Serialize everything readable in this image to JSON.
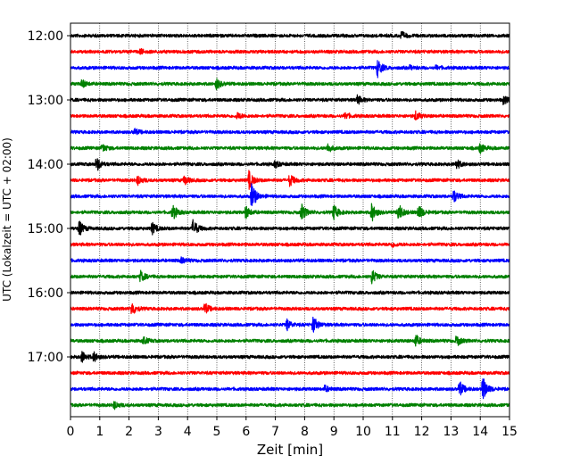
{
  "chart_data": {
    "type": "line",
    "subtype": "helicorder",
    "title": "",
    "xlabel": "Zeit  [min]",
    "ylabel": "UTC (Lokalzeit = UTC + 02:00)",
    "xlim": [
      0,
      15
    ],
    "xticks": [
      0,
      1,
      2,
      3,
      4,
      5,
      6,
      7,
      8,
      9,
      10,
      11,
      12,
      13,
      14,
      15
    ],
    "ytick_labels": [
      "12:00",
      "13:00",
      "14:00",
      "15:00",
      "16:00",
      "17:00"
    ],
    "ytick_rows": [
      0,
      4,
      8,
      12,
      16,
      20
    ],
    "grid": "vertical dotted",
    "trace_colors": [
      "#000000",
      "#ff0000",
      "#0000ff",
      "#008000"
    ],
    "rows": [
      {
        "start": "12:00",
        "events": [
          {
            "t": 11.3,
            "amp": 0.25
          }
        ]
      },
      {
        "start": "12:15",
        "events": [
          {
            "t": 2.4,
            "amp": 0.15
          }
        ]
      },
      {
        "start": "12:30",
        "events": [
          {
            "t": 10.5,
            "amp": 0.6
          },
          {
            "t": 11.6,
            "amp": 0.12
          },
          {
            "t": 12.5,
            "amp": 0.12
          }
        ]
      },
      {
        "start": "12:45",
        "events": [
          {
            "t": 0.4,
            "amp": 0.25
          },
          {
            "t": 5.0,
            "amp": 0.35
          }
        ]
      },
      {
        "start": "13:00",
        "events": [
          {
            "t": 9.8,
            "amp": 0.3
          },
          {
            "t": 14.8,
            "amp": 0.25
          }
        ]
      },
      {
        "start": "13:15",
        "events": [
          {
            "t": 5.7,
            "amp": 0.22
          },
          {
            "t": 9.4,
            "amp": 0.2
          },
          {
            "t": 11.8,
            "amp": 0.28
          }
        ]
      },
      {
        "start": "13:30",
        "events": [
          {
            "t": 2.2,
            "amp": 0.18
          }
        ]
      },
      {
        "start": "13:45",
        "events": [
          {
            "t": 1.1,
            "amp": 0.25
          },
          {
            "t": 8.8,
            "amp": 0.28
          },
          {
            "t": 14.0,
            "amp": 0.3
          }
        ]
      },
      {
        "start": "14:00",
        "events": [
          {
            "t": 0.9,
            "amp": 0.45
          },
          {
            "t": 7.0,
            "amp": 0.2
          },
          {
            "t": 13.2,
            "amp": 0.3
          }
        ]
      },
      {
        "start": "14:15",
        "events": [
          {
            "t": 6.1,
            "amp": 0.6
          },
          {
            "t": 7.5,
            "amp": 0.4
          },
          {
            "t": 2.3,
            "amp": 0.3
          },
          {
            "t": 3.9,
            "amp": 0.3
          }
        ]
      },
      {
        "start": "14:30",
        "events": [
          {
            "t": 6.2,
            "amp": 0.9
          },
          {
            "t": 13.1,
            "amp": 0.4
          }
        ]
      },
      {
        "start": "14:45",
        "events": [
          {
            "t": 3.5,
            "amp": 0.5
          },
          {
            "t": 6.0,
            "amp": 0.4
          },
          {
            "t": 7.9,
            "amp": 0.55
          },
          {
            "t": 9.0,
            "amp": 0.5
          },
          {
            "t": 10.3,
            "amp": 0.6
          },
          {
            "t": 11.2,
            "amp": 0.65
          },
          {
            "t": 11.9,
            "amp": 0.5
          }
        ]
      },
      {
        "start": "15:00",
        "events": [
          {
            "t": 0.3,
            "amp": 0.5
          },
          {
            "t": 2.8,
            "amp": 0.35
          },
          {
            "t": 4.2,
            "amp": 0.6
          }
        ]
      },
      {
        "start": "15:15",
        "events": [
          {
            "t": 11.0,
            "amp": 0.15
          }
        ]
      },
      {
        "start": "15:30",
        "events": [
          {
            "t": 3.8,
            "amp": 0.18
          }
        ]
      },
      {
        "start": "15:45",
        "events": [
          {
            "t": 2.4,
            "amp": 0.35
          },
          {
            "t": 10.3,
            "amp": 0.5
          }
        ]
      },
      {
        "start": "16:00",
        "events": []
      },
      {
        "start": "16:15",
        "events": [
          {
            "t": 2.1,
            "amp": 0.45
          },
          {
            "t": 4.6,
            "amp": 0.35
          }
        ]
      },
      {
        "start": "16:30",
        "events": [
          {
            "t": 7.4,
            "amp": 0.35
          },
          {
            "t": 8.3,
            "amp": 0.55
          }
        ]
      },
      {
        "start": "16:45",
        "events": [
          {
            "t": 2.5,
            "amp": 0.25
          },
          {
            "t": 11.8,
            "amp": 0.4
          },
          {
            "t": 13.2,
            "amp": 0.35
          }
        ]
      },
      {
        "start": "17:00",
        "events": [
          {
            "t": 0.4,
            "amp": 0.35
          },
          {
            "t": 0.8,
            "amp": 0.3
          }
        ]
      },
      {
        "start": "17:15",
        "events": []
      },
      {
        "start": "17:30",
        "events": [
          {
            "t": 8.7,
            "amp": 0.2
          },
          {
            "t": 13.3,
            "amp": 0.5
          },
          {
            "t": 14.1,
            "amp": 0.8
          }
        ]
      },
      {
        "start": "17:45",
        "events": [
          {
            "t": 1.5,
            "amp": 0.25
          }
        ]
      }
    ]
  }
}
